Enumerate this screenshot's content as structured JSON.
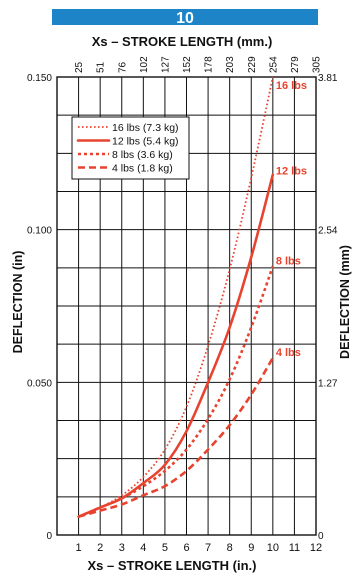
{
  "badge": {
    "text": "10",
    "color": "#1d84c8"
  },
  "colors": {
    "curve": "#e8432e",
    "grid": "#111111",
    "axis_text": "#111111"
  },
  "chart_data": {
    "type": "line",
    "title": "Xs – STROKE LENGTH (mm.)",
    "xlabel": "Xs – STROKE LENGTH (in.)",
    "ylabel": "DEFLECTION (in)",
    "ylabel_right": "DEFLECTION (mm)",
    "xlim": [
      0,
      12
    ],
    "ylim": [
      0,
      0.15
    ],
    "grid": true,
    "legend_position": "top-left",
    "x_ticks": [
      "1",
      "2",
      "3",
      "4",
      "5",
      "6",
      "7",
      "8",
      "9",
      "10",
      "11",
      "12"
    ],
    "x_top_ticks": [
      "25",
      "51",
      "76",
      "102",
      "127",
      "152",
      "178",
      "203",
      "229",
      "254",
      "279",
      "305"
    ],
    "y_ticks": [
      "0",
      "0.050",
      "0.100",
      "0.150"
    ],
    "y_right_ticks": [
      "0",
      "1.27",
      "2.54",
      "3.81"
    ],
    "series": [
      {
        "name": "16 lbs (7.3 kg)",
        "end_label": "16 lbs",
        "dash": "dotted",
        "x": [
          1,
          2,
          3,
          4,
          5,
          6,
          7,
          8,
          9,
          10
        ],
        "y": [
          0.006,
          0.009,
          0.013,
          0.019,
          0.028,
          0.042,
          0.062,
          0.087,
          0.117,
          0.15
        ]
      },
      {
        "name": "12 lbs (5.4 kg)",
        "end_label": "12 lbs",
        "dash": "solid",
        "x": [
          1,
          2,
          3,
          4,
          5,
          6,
          7,
          8,
          9,
          10
        ],
        "y": [
          0.006,
          0.009,
          0.012,
          0.017,
          0.023,
          0.034,
          0.05,
          0.068,
          0.091,
          0.118
        ]
      },
      {
        "name": "8 lbs (3.6 kg)",
        "end_label": "8 lbs",
        "dash": "dotted-heavy",
        "x": [
          1,
          2,
          3,
          4,
          5,
          6,
          7,
          8,
          9,
          10
        ],
        "y": [
          0.006,
          0.009,
          0.012,
          0.016,
          0.021,
          0.028,
          0.038,
          0.051,
          0.068,
          0.088
        ]
      },
      {
        "name": "4 lbs (1.8 kg)",
        "end_label": "4 lbs",
        "dash": "dashed",
        "x": [
          1,
          2,
          3,
          4,
          5,
          6,
          7,
          8,
          9,
          10
        ],
        "y": [
          0.006,
          0.008,
          0.01,
          0.013,
          0.016,
          0.021,
          0.028,
          0.036,
          0.046,
          0.058
        ]
      }
    ]
  }
}
